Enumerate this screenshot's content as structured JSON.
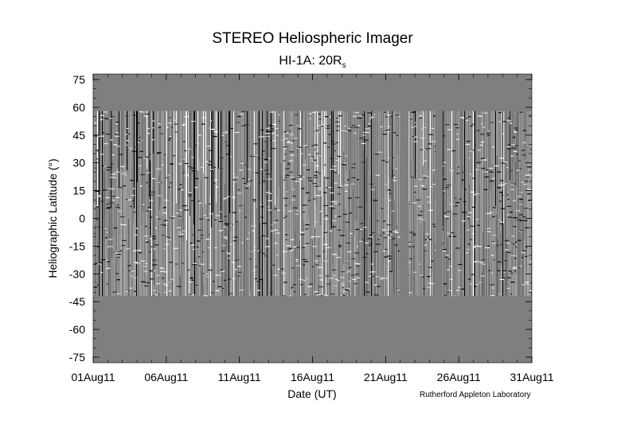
{
  "chart_data": {
    "type": "heatmap",
    "title": "STEREO Heliospheric Imager",
    "subtitle": "HI-1A: 20R",
    "subtitle_subscript": "s",
    "xlabel": "Date (UT)",
    "ylabel": "Heliographic Latitude (°)",
    "ylim": [
      -78,
      78
    ],
    "y_ticks": [
      75,
      60,
      45,
      30,
      15,
      0,
      -15,
      -30,
      -45,
      -60,
      -75
    ],
    "x_start": "2011-08-01",
    "x_end": "2011-08-31",
    "x_ticks": [
      "01Aug11",
      "06Aug11",
      "11Aug11",
      "16Aug11",
      "21Aug11",
      "26Aug11",
      "31Aug11"
    ],
    "data_lat_range": [
      -42,
      58
    ],
    "data_gaps": [
      {
        "start": "2011-08-22 00:00",
        "end": "2011-08-22 14:00"
      },
      {
        "start": "2011-08-24 10:00",
        "end": "2011-08-24 22:00"
      }
    ],
    "grid": false,
    "background_color": "#7f7f7f",
    "colormap": "grayscale running-difference"
  },
  "footer": {
    "credit": "Rutherford Appleton Laboratory"
  }
}
